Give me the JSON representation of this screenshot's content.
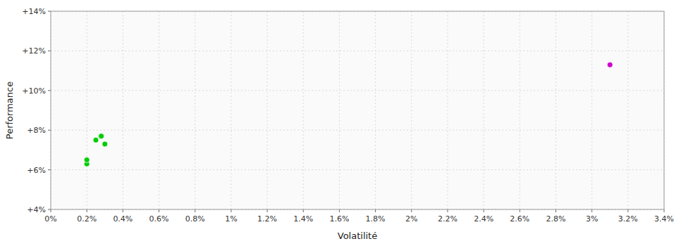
{
  "chart_data": {
    "type": "scatter",
    "xlabel": "Volatilité",
    "ylabel": "Performance",
    "xlim": [
      0.0,
      0.034
    ],
    "ylim": [
      0.04,
      0.14
    ],
    "xticks": [
      {
        "value": 0,
        "label": "0%"
      },
      {
        "value": 0.002,
        "label": "0.2%"
      },
      {
        "value": 0.004,
        "label": "0.4%"
      },
      {
        "value": 0.006,
        "label": "0.6%"
      },
      {
        "value": 0.008,
        "label": "0.8%"
      },
      {
        "value": 0.01,
        "label": "1%"
      },
      {
        "value": 0.012,
        "label": "1.2%"
      },
      {
        "value": 0.014,
        "label": "1.4%"
      },
      {
        "value": 0.016,
        "label": "1.6%"
      },
      {
        "value": 0.018,
        "label": "1.8%"
      },
      {
        "value": 0.02,
        "label": "2%"
      },
      {
        "value": 0.022,
        "label": "2.2%"
      },
      {
        "value": 0.024,
        "label": "2.4%"
      },
      {
        "value": 0.026,
        "label": "2.6%"
      },
      {
        "value": 0.028,
        "label": "2.8%"
      },
      {
        "value": 0.03,
        "label": "3%"
      },
      {
        "value": 0.032,
        "label": "3.2%"
      },
      {
        "value": 0.034,
        "label": "3.4%"
      }
    ],
    "yticks": [
      {
        "value": 0.04,
        "label": "+4%"
      },
      {
        "value": 0.06,
        "label": "+6%"
      },
      {
        "value": 0.08,
        "label": "+8%"
      },
      {
        "value": 0.1,
        "label": "+10%"
      },
      {
        "value": 0.12,
        "label": "+12%"
      },
      {
        "value": 0.14,
        "label": "+14%"
      }
    ],
    "grid": true,
    "series": [
      {
        "color": "#00cc00",
        "x": [
          0.002,
          0.002,
          0.0025,
          0.0028,
          0.003
        ],
        "values": [
          0.063,
          0.065,
          0.075,
          0.077,
          0.073
        ]
      },
      {
        "color": "#cc00cc",
        "x": [
          0.031
        ],
        "values": [
          0.113
        ]
      }
    ]
  }
}
